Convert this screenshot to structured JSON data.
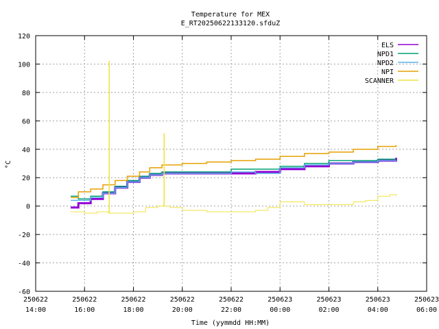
{
  "chart_data": {
    "type": "line",
    "title": "Temperature for MEX",
    "subtitle": "E_RT20250622133120.sfduZ",
    "xlabel": "Time (yymmdd HH:MM)",
    "ylabel": "°C",
    "xlim": [
      "2025-06-22 14:00",
      "2025-06-23 06:00"
    ],
    "ylim": [
      -60,
      120
    ],
    "grid": true,
    "legend_position": "top-right",
    "x_ticks": [
      {
        "date": "250622",
        "time": "14:00"
      },
      {
        "date": "250622",
        "time": "16:00"
      },
      {
        "date": "250622",
        "time": "18:00"
      },
      {
        "date": "250622",
        "time": "20:00"
      },
      {
        "date": "250622",
        "time": "22:00"
      },
      {
        "date": "250623",
        "time": "00:00"
      },
      {
        "date": "250623",
        "time": "02:00"
      },
      {
        "date": "250623",
        "time": "04:00"
      },
      {
        "date": "250623",
        "time": "06:00"
      }
    ],
    "y_ticks": [
      "120",
      "100",
      "80",
      "60",
      "40",
      "20",
      "0",
      "-20",
      "-40",
      "-60"
    ],
    "series": [
      {
        "name": "ELS",
        "color": "#9400d3",
        "width": 3,
        "points": [
          [
            "2025-06-22 15:26",
            -1
          ],
          [
            "2025-06-22 15:45",
            2
          ],
          [
            "2025-06-22 16:15",
            5
          ],
          [
            "2025-06-22 16:45",
            9
          ],
          [
            "2025-06-22 17:15",
            13
          ],
          [
            "2025-06-22 17:45",
            17
          ],
          [
            "2025-06-22 18:15",
            20
          ],
          [
            "2025-06-22 18:40",
            22
          ],
          [
            "2025-06-22 19:10",
            23
          ],
          [
            "2025-06-22 20:00",
            23
          ],
          [
            "2025-06-22 21:00",
            23
          ],
          [
            "2025-06-22 22:00",
            23
          ],
          [
            "2025-06-22 23:00",
            24
          ],
          [
            "2025-06-23 00:00",
            26
          ],
          [
            "2025-06-23 01:00",
            28
          ],
          [
            "2025-06-23 02:00",
            30
          ],
          [
            "2025-06-23 03:00",
            31
          ],
          [
            "2025-06-23 04:00",
            32
          ],
          [
            "2025-06-23 04:45",
            34
          ]
        ]
      },
      {
        "name": "NPD1",
        "color": "#009e73",
        "width": 1.5,
        "points": [
          [
            "2025-06-22 15:26",
            7
          ],
          [
            "2025-06-22 15:45",
            5
          ],
          [
            "2025-06-22 16:15",
            7
          ],
          [
            "2025-06-22 16:45",
            10
          ],
          [
            "2025-06-22 17:15",
            14
          ],
          [
            "2025-06-22 17:45",
            18
          ],
          [
            "2025-06-22 18:15",
            21
          ],
          [
            "2025-06-22 18:40",
            23
          ],
          [
            "2025-06-22 19:10",
            24
          ],
          [
            "2025-06-22 20:00",
            24
          ],
          [
            "2025-06-22 21:00",
            24
          ],
          [
            "2025-06-22 22:00",
            26
          ],
          [
            "2025-06-22 23:00",
            26
          ],
          [
            "2025-06-23 00:00",
            28
          ],
          [
            "2025-06-23 01:00",
            30
          ],
          [
            "2025-06-23 02:00",
            32
          ],
          [
            "2025-06-23 03:00",
            32
          ],
          [
            "2025-06-23 04:00",
            33
          ],
          [
            "2025-06-23 04:45",
            33
          ]
        ]
      },
      {
        "name": "NPD2",
        "color": "#56b4e9",
        "width": 1.5,
        "points": [
          [
            "2025-06-22 15:26",
            4
          ],
          [
            "2025-06-22 15:45",
            4
          ],
          [
            "2025-06-22 16:15",
            6
          ],
          [
            "2025-06-22 16:45",
            9
          ],
          [
            "2025-06-22 17:15",
            13
          ],
          [
            "2025-06-22 17:45",
            17
          ],
          [
            "2025-06-22 18:15",
            20
          ],
          [
            "2025-06-22 18:40",
            22
          ],
          [
            "2025-06-22 19:10",
            23
          ],
          [
            "2025-06-22 20:00",
            23
          ],
          [
            "2025-06-22 21:00",
            23
          ],
          [
            "2025-06-22 22:00",
            24
          ],
          [
            "2025-06-22 23:00",
            23
          ],
          [
            "2025-06-23 00:00",
            27
          ],
          [
            "2025-06-23 01:00",
            29
          ],
          [
            "2025-06-23 02:00",
            30
          ],
          [
            "2025-06-23 03:00",
            31
          ],
          [
            "2025-06-23 04:00",
            32
          ],
          [
            "2025-06-23 04:45",
            31
          ]
        ]
      },
      {
        "name": "NPI",
        "color": "#e69f00",
        "width": 1.5,
        "points": [
          [
            "2025-06-22 15:26",
            6
          ],
          [
            "2025-06-22 15:45",
            10
          ],
          [
            "2025-06-22 16:15",
            12
          ],
          [
            "2025-06-22 16:45",
            15
          ],
          [
            "2025-06-22 17:15",
            18
          ],
          [
            "2025-06-22 17:45",
            21
          ],
          [
            "2025-06-22 18:15",
            24
          ],
          [
            "2025-06-22 18:40",
            27
          ],
          [
            "2025-06-22 19:10",
            29
          ],
          [
            "2025-06-22 20:00",
            30
          ],
          [
            "2025-06-22 21:00",
            31
          ],
          [
            "2025-06-22 22:00",
            32
          ],
          [
            "2025-06-22 23:00",
            33
          ],
          [
            "2025-06-23 00:00",
            35
          ],
          [
            "2025-06-23 01:00",
            37
          ],
          [
            "2025-06-23 02:00",
            38
          ],
          [
            "2025-06-23 03:00",
            40
          ],
          [
            "2025-06-23 04:00",
            42
          ],
          [
            "2025-06-23 04:45",
            43
          ]
        ]
      },
      {
        "name": "SCANNER",
        "color": "#f0e442",
        "width": 1,
        "points": [
          [
            "2025-06-22 15:26",
            -4
          ],
          [
            "2025-06-22 16:00",
            -5
          ],
          [
            "2025-06-22 16:30",
            -4
          ],
          [
            "2025-06-22 16:59",
            -5
          ],
          [
            "2025-06-22 17:00",
            102
          ],
          [
            "2025-06-22 17:01",
            -5
          ],
          [
            "2025-06-22 17:30",
            -5
          ],
          [
            "2025-06-22 18:00",
            -4
          ],
          [
            "2025-06-22 18:30",
            -1
          ],
          [
            "2025-06-22 19:00",
            0
          ],
          [
            "2025-06-22 19:14",
            1
          ],
          [
            "2025-06-22 19:15",
            51
          ],
          [
            "2025-06-22 19:16",
            0
          ],
          [
            "2025-06-22 19:30",
            -1
          ],
          [
            "2025-06-22 20:00",
            -3
          ],
          [
            "2025-06-22 21:00",
            -4
          ],
          [
            "2025-06-22 22:00",
            -4
          ],
          [
            "2025-06-22 23:00",
            -3
          ],
          [
            "2025-06-22 23:30",
            -1
          ],
          [
            "2025-06-23 00:00",
            3
          ],
          [
            "2025-06-23 01:00",
            1
          ],
          [
            "2025-06-23 02:00",
            1
          ],
          [
            "2025-06-23 03:00",
            3
          ],
          [
            "2025-06-23 03:30",
            4
          ],
          [
            "2025-06-23 04:00",
            7
          ],
          [
            "2025-06-23 04:30",
            8
          ],
          [
            "2025-06-23 04:45",
            7
          ]
        ]
      }
    ]
  }
}
